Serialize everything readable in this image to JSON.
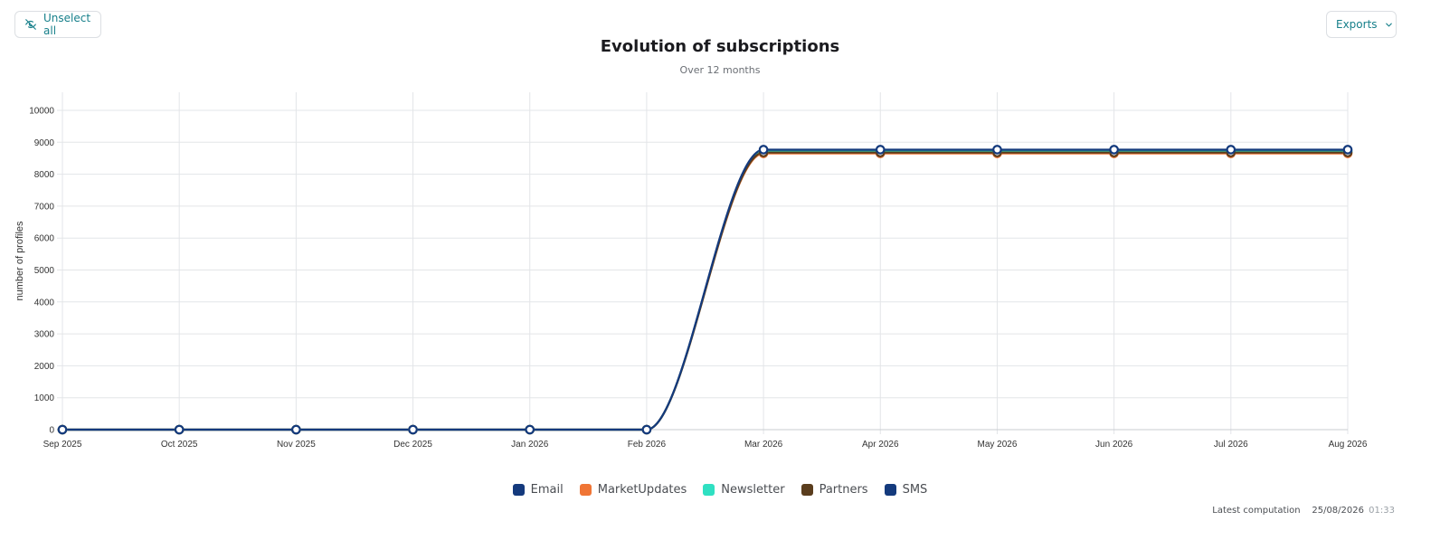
{
  "toolbar": {
    "unselect_label": "Unselect all",
    "exports_label": "Exports"
  },
  "footer": {
    "label": "Latest computation",
    "date": "25/08/2026",
    "time": "01:33"
  },
  "chart_data": {
    "type": "line",
    "title": "Evolution of subscriptions",
    "subtitle": "Over 12 months",
    "xlabel": "",
    "ylabel": "number of profiles",
    "categories": [
      "Sep 2025",
      "Oct 2025",
      "Nov 2025",
      "Dec 2025",
      "Jan 2026",
      "Feb 2026",
      "Mar 2026",
      "Apr 2026",
      "May 2026",
      "Jun 2026",
      "Jul 2026",
      "Aug 2026"
    ],
    "ylim": [
      0,
      10000
    ],
    "yticks": [
      0,
      1000,
      2000,
      3000,
      4000,
      5000,
      6000,
      7000,
      8000,
      9000,
      10000
    ],
    "grid": true,
    "legend": "bottom",
    "series": [
      {
        "name": "Email",
        "color": "#143a7d",
        "values": [
          0,
          0,
          0,
          0,
          0,
          0,
          8730,
          8730,
          8730,
          8730,
          8730,
          8730
        ]
      },
      {
        "name": "MarketUpdates",
        "color": "#f07535",
        "values": [
          0,
          0,
          0,
          0,
          0,
          0,
          8650,
          8650,
          8650,
          8650,
          8650,
          8650
        ]
      },
      {
        "name": "Newsletter",
        "color": "#2fe0c2",
        "values": [
          0,
          0,
          0,
          0,
          0,
          0,
          8700,
          8700,
          8700,
          8700,
          8700,
          8700
        ]
      },
      {
        "name": "Partners",
        "color": "#5a3d1d",
        "values": [
          0,
          0,
          0,
          0,
          0,
          0,
          8680,
          8680,
          8680,
          8680,
          8680,
          8680
        ]
      },
      {
        "name": "SMS",
        "color": "#143a7d",
        "values": [
          0,
          0,
          0,
          0,
          0,
          0,
          8770,
          8770,
          8770,
          8770,
          8770,
          8770
        ]
      }
    ]
  }
}
